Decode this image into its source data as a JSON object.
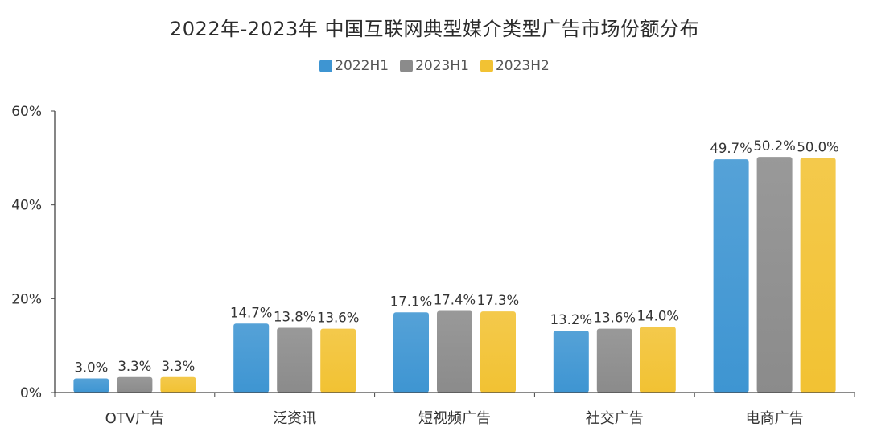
{
  "title": "2022年-2023年 中国互联网典型媒介类型广告市场份额分布",
  "legend": [
    {
      "name": "2022H1",
      "color": "#3e95d2"
    },
    {
      "name": "2023H1",
      "color": "#8b8b8b"
    },
    {
      "name": "2023H2",
      "color": "#f2c233"
    }
  ],
  "chart_data": {
    "type": "bar",
    "title": "2022年-2023年 中国互联网典型媒介类型广告市场份额分布",
    "xlabel": "",
    "ylabel": "",
    "categories": [
      "OTV广告",
      "泛资讯",
      "短视频广告",
      "社交广告",
      "电商广告"
    ],
    "series": [
      {
        "name": "2022H1",
        "color": "#3e95d2",
        "values": [
          3.0,
          14.7,
          17.1,
          13.2,
          49.7
        ],
        "labels": [
          "3.0%",
          "14.7%",
          "17.1%",
          "13.2%",
          "49.7%"
        ]
      },
      {
        "name": "2023H1",
        "color": "#8b8b8b",
        "values": [
          3.3,
          13.8,
          17.4,
          13.6,
          50.2
        ],
        "labels": [
          "3.3%",
          "13.8%",
          "17.4%",
          "13.6%",
          "50.2%"
        ]
      },
      {
        "name": "2023H2",
        "color": "#f2c233",
        "values": [
          3.3,
          13.6,
          17.3,
          14.0,
          50.0
        ],
        "labels": [
          "3.3%",
          "13.6%",
          "17.3%",
          "14.0%",
          "50.0%"
        ]
      }
    ],
    "ylim": [
      0,
      60
    ],
    "yticks": [
      0,
      20,
      40,
      60
    ],
    "ytick_labels": [
      "0%",
      "20%",
      "40%",
      "60%"
    ],
    "grid": false,
    "legend_position": "top-center"
  }
}
